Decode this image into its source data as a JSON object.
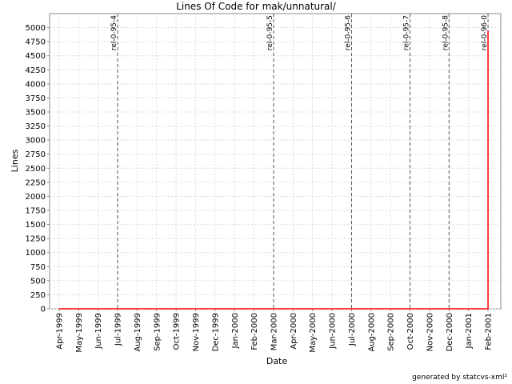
{
  "chart_data": {
    "type": "line",
    "title": "Lines Of Code for mak/unnatural/",
    "x_label": "Date",
    "y_label": "Lines",
    "footer": "generated by statcvs-xml²",
    "series": [
      {
        "name": "Lines",
        "color": "#ff0000",
        "x": [
          "1999-04",
          "2001-02",
          "2001-02",
          "2001-02",
          "2001-02"
        ],
        "values": [
          0,
          0,
          4600,
          4600,
          4950
        ]
      }
    ],
    "xlim": [
      "1999-03",
      "2001-03"
    ],
    "xticks": [
      {
        "value": "1999-04",
        "label": "Apr-1999"
      },
      {
        "value": "1999-05",
        "label": "May-1999"
      },
      {
        "value": "1999-06",
        "label": "Jun-1999"
      },
      {
        "value": "1999-07",
        "label": "Jul-1999"
      },
      {
        "value": "1999-08",
        "label": "Aug-1999"
      },
      {
        "value": "1999-09",
        "label": "Sep-1999"
      },
      {
        "value": "1999-10",
        "label": "Oct-1999"
      },
      {
        "value": "1999-11",
        "label": "Nov-1999"
      },
      {
        "value": "1999-12",
        "label": "Dec-1999"
      },
      {
        "value": "2000-01",
        "label": "Jan-2000"
      },
      {
        "value": "2000-02",
        "label": "Feb-2000"
      },
      {
        "value": "2000-03",
        "label": "Mar-2000"
      },
      {
        "value": "2000-04",
        "label": "Apr-2000"
      },
      {
        "value": "2000-05",
        "label": "May-2000"
      },
      {
        "value": "2000-06",
        "label": "Jun-2000"
      },
      {
        "value": "2000-07",
        "label": "Jul-2000"
      },
      {
        "value": "2000-08",
        "label": "Aug-2000"
      },
      {
        "value": "2000-09",
        "label": "Sep-2000"
      },
      {
        "value": "2000-10",
        "label": "Oct-2000"
      },
      {
        "value": "2000-11",
        "label": "Nov-2000"
      },
      {
        "value": "2000-12",
        "label": "Dec-2000"
      },
      {
        "value": "2001-01",
        "label": "Jan-2001"
      },
      {
        "value": "2001-02",
        "label": "Feb-2001"
      }
    ],
    "ylim": [
      0,
      5250
    ],
    "yticks": [
      0,
      250,
      500,
      750,
      1000,
      1250,
      1500,
      1750,
      2000,
      2250,
      2500,
      2750,
      3000,
      3250,
      3500,
      3750,
      4000,
      4250,
      4500,
      4750,
      5000
    ],
    "grid": true,
    "annotations": [
      {
        "x": "1999-07",
        "label": "rel-0-95-4"
      },
      {
        "x": "2000-03",
        "label": "rel-0-95-5"
      },
      {
        "x": "2000-07",
        "label": "rel-0-95-6"
      },
      {
        "x": "2000-10",
        "label": "rel-0-95-7"
      },
      {
        "x": "2000-12",
        "label": "rel-0-95-8"
      },
      {
        "x": "2001-02",
        "label": "rel-0-96-0"
      }
    ]
  }
}
